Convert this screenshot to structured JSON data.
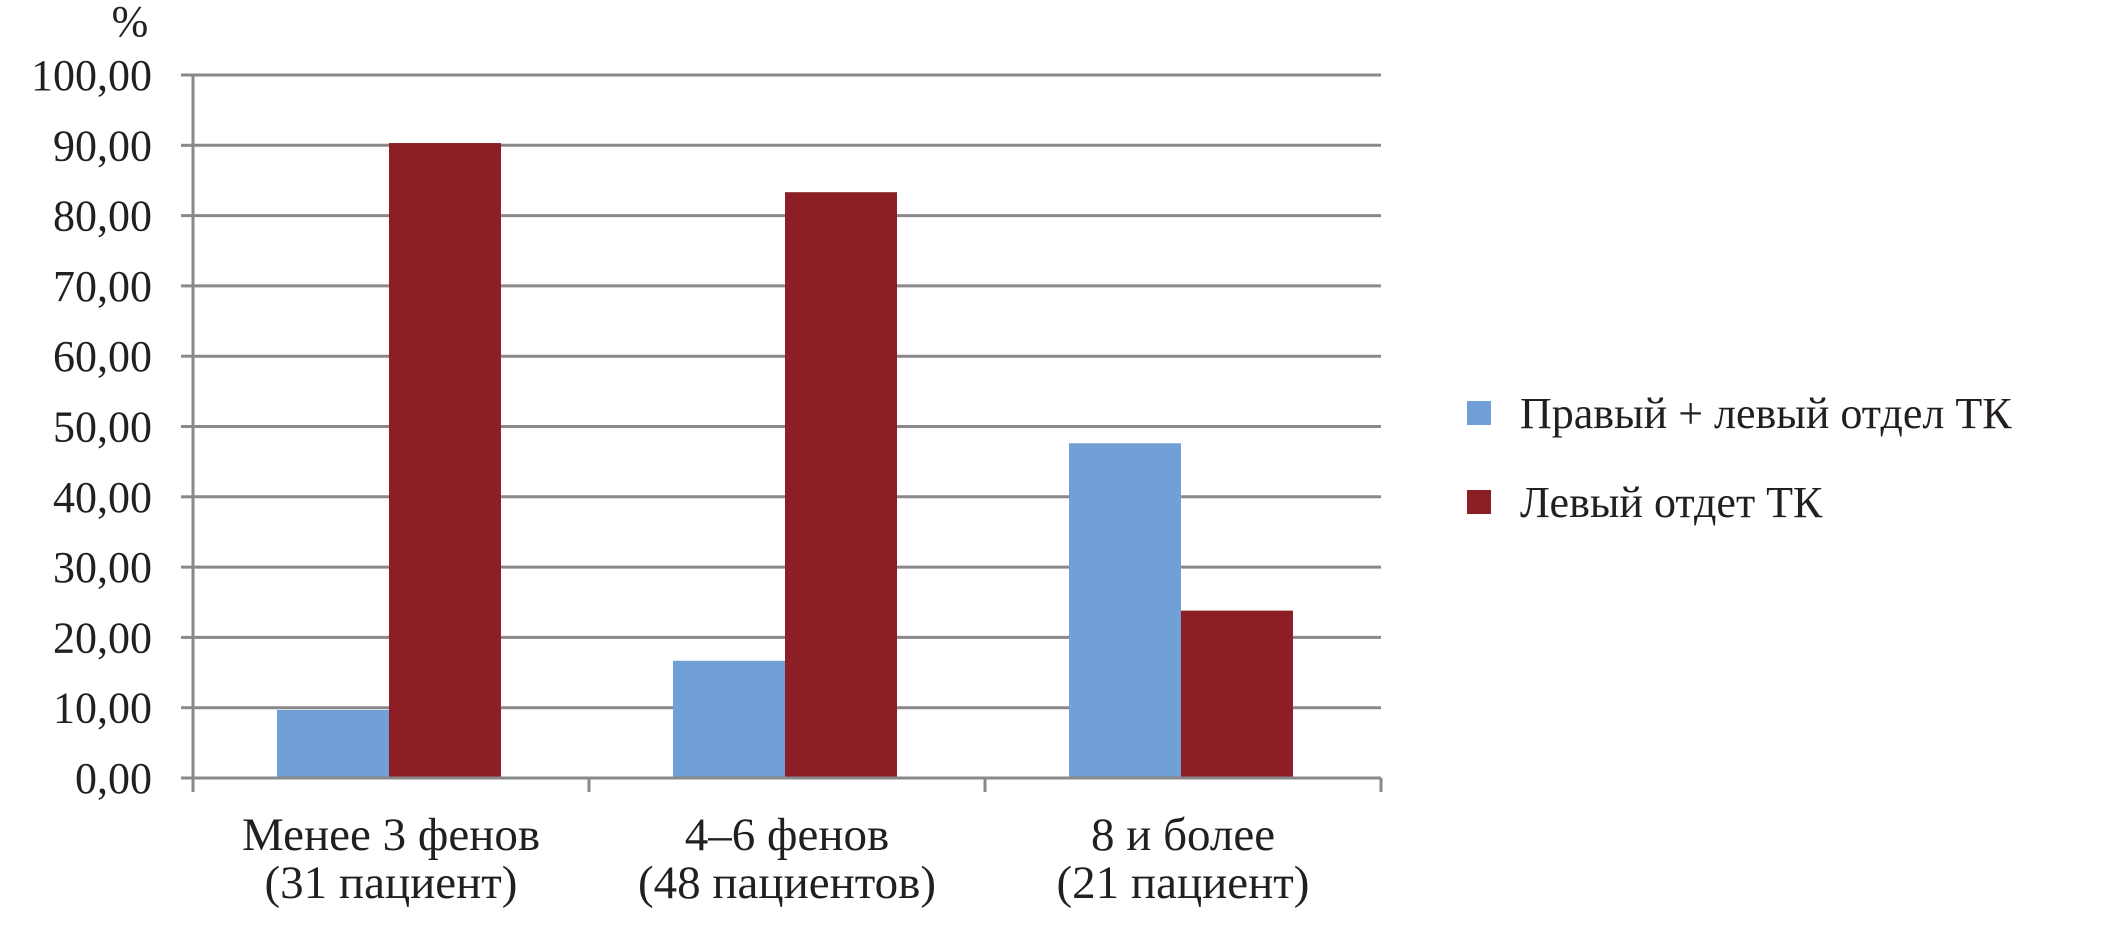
{
  "chart_data": {
    "type": "bar",
    "ylabel": "%",
    "ylim": [
      0,
      100
    ],
    "ytick_step": 10,
    "ytick_labels": [
      "0,00",
      "10,00",
      "20,00",
      "30,00",
      "40,00",
      "50,00",
      "60,00",
      "70,00",
      "80,00",
      "90,00",
      "100,00"
    ],
    "grid": true,
    "legend_position": "right",
    "categories": [
      [
        "Менее 3 фенов",
        "(31 пациент)"
      ],
      [
        "4–6 фенов",
        "(48 пациентов)"
      ],
      [
        "8 и более",
        "(21 пациент)"
      ]
    ],
    "series": [
      {
        "name": "Правый + левый отдел ТК",
        "color": "#71a0d6",
        "values": [
          9.68,
          16.67,
          47.62
        ]
      },
      {
        "name": "Левый отдет ТК",
        "color": "#8b1f25",
        "values": [
          90.32,
          83.33,
          23.81
        ]
      }
    ],
    "colors": {
      "axis": "#898989",
      "grid": "#898989",
      "text": "#231f20"
    }
  }
}
